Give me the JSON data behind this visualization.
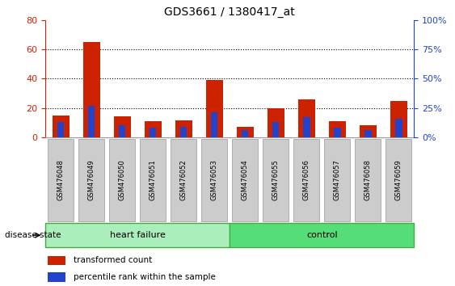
{
  "title": "GDS3661 / 1380417_at",
  "samples": [
    "GSM476048",
    "GSM476049",
    "GSM476050",
    "GSM476051",
    "GSM476052",
    "GSM476053",
    "GSM476054",
    "GSM476055",
    "GSM476056",
    "GSM476057",
    "GSM476058",
    "GSM476059"
  ],
  "transformed_count": [
    15,
    65,
    14.5,
    11,
    11.5,
    39,
    7,
    20,
    26,
    11,
    8,
    25
  ],
  "percentile_rank": [
    13,
    27,
    10,
    8,
    9,
    21,
    6,
    13,
    17,
    8,
    6,
    16
  ],
  "left_ylim": [
    0,
    80
  ],
  "right_ylim": [
    0,
    100
  ],
  "left_yticks": [
    0,
    20,
    40,
    60,
    80
  ],
  "right_yticks": [
    0,
    25,
    50,
    75,
    100
  ],
  "right_yticklabels": [
    "0%",
    "25%",
    "50%",
    "75%",
    "100%"
  ],
  "bar_color_red": "#cc2200",
  "bar_color_blue": "#2244cc",
  "hf_bg": "#aaeebb",
  "ctrl_bg": "#55dd77",
  "tick_bg": "#cccccc",
  "left_tick_color": "#cc2200",
  "right_tick_color": "#2244cc",
  "grid_levels": [
    20,
    40,
    60
  ],
  "legend_red": "transformed count",
  "legend_blue": "percentile rank within the sample",
  "disease_state_label": "disease state",
  "hf_label": "heart failure",
  "ctrl_label": "control",
  "n_hf": 6,
  "n_ctrl": 6
}
